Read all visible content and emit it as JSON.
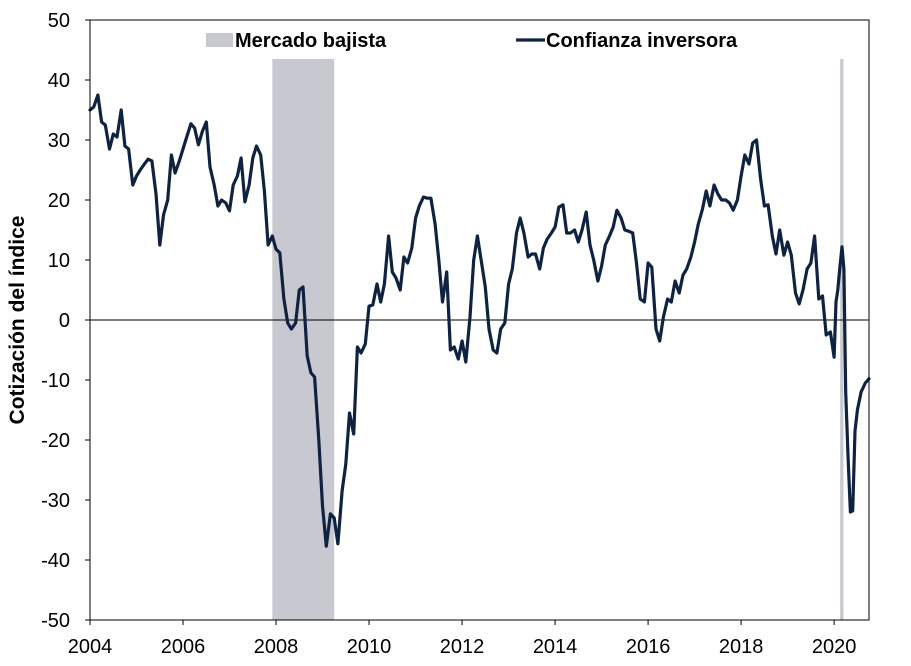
{
  "chart_data": {
    "type": "line",
    "title": "",
    "xlabel": "",
    "ylabel": "Cotización del índice",
    "xlim": [
      2004.0,
      2020.75
    ],
    "ylim": [
      -50,
      50
    ],
    "yticks": [
      50,
      40,
      30,
      20,
      10,
      0,
      -10,
      -20,
      -30,
      -40,
      -50
    ],
    "xticks": [
      2004,
      2006,
      2008,
      2010,
      2012,
      2014,
      2016,
      2018,
      2020
    ],
    "xtick_labels": [
      "2004",
      "2006",
      "2008",
      "2010",
      "2012",
      "2014",
      "2016",
      "2018",
      "2020"
    ],
    "grid": false,
    "zero_line": true,
    "legend_position": "top",
    "legend": [
      {
        "name": "Mercado bajista",
        "kind": "area",
        "color": "#c8c9d0"
      },
      {
        "name": "Confianza inversora",
        "kind": "line",
        "color": "#0f2341"
      }
    ],
    "shaded_periods": [
      {
        "name": "Mercado bajista",
        "start": 2007.92,
        "end": 2009.25
      },
      {
        "name": "Mercado bajista",
        "start": 2020.13,
        "end": 2020.2
      }
    ],
    "series": [
      {
        "name": "Confianza inversora",
        "color": "#0f2341",
        "points": [
          [
            2004.0,
            35
          ],
          [
            2004.08,
            35.5
          ],
          [
            2004.17,
            37.5
          ],
          [
            2004.25,
            33
          ],
          [
            2004.33,
            32.5
          ],
          [
            2004.42,
            28.5
          ],
          [
            2004.5,
            31
          ],
          [
            2004.58,
            30.5
          ],
          [
            2004.67,
            35
          ],
          [
            2004.75,
            29
          ],
          [
            2004.83,
            28.5
          ],
          [
            2004.92,
            22.5
          ],
          [
            2005.0,
            24
          ],
          [
            2005.08,
            25
          ],
          [
            2005.17,
            26
          ],
          [
            2005.25,
            26.8
          ],
          [
            2005.33,
            26.5
          ],
          [
            2005.42,
            21
          ],
          [
            2005.5,
            12.5
          ],
          [
            2005.58,
            17.5
          ],
          [
            2005.67,
            20
          ],
          [
            2005.75,
            27.5
          ],
          [
            2005.83,
            24.5
          ],
          [
            2005.92,
            26.5
          ],
          [
            2006.0,
            28.5
          ],
          [
            2006.08,
            30.5
          ],
          [
            2006.17,
            32.7
          ],
          [
            2006.25,
            32
          ],
          [
            2006.33,
            29.2
          ],
          [
            2006.42,
            31.5
          ],
          [
            2006.5,
            33
          ],
          [
            2006.58,
            25.5
          ],
          [
            2006.67,
            22.5
          ],
          [
            2006.75,
            19
          ],
          [
            2006.83,
            20
          ],
          [
            2006.92,
            19.5
          ],
          [
            2007.0,
            18.2
          ],
          [
            2007.08,
            22.5
          ],
          [
            2007.17,
            24
          ],
          [
            2007.25,
            27
          ],
          [
            2007.33,
            19.7
          ],
          [
            2007.42,
            22.5
          ],
          [
            2007.5,
            27
          ],
          [
            2007.58,
            29
          ],
          [
            2007.67,
            27.5
          ],
          [
            2007.75,
            21.5
          ],
          [
            2007.83,
            12.5
          ],
          [
            2007.92,
            14
          ],
          [
            2008.0,
            11.8
          ],
          [
            2008.08,
            11.2
          ],
          [
            2008.17,
            3.5
          ],
          [
            2008.25,
            -0.5
          ],
          [
            2008.33,
            -1.5
          ],
          [
            2008.42,
            -0.5
          ],
          [
            2008.5,
            5
          ],
          [
            2008.58,
            5.5
          ],
          [
            2008.67,
            -6
          ],
          [
            2008.75,
            -8.8
          ],
          [
            2008.83,
            -9.5
          ],
          [
            2008.92,
            -20
          ],
          [
            2009.0,
            -31
          ],
          [
            2009.08,
            -37.7
          ],
          [
            2009.17,
            -32.3
          ],
          [
            2009.25,
            -33
          ],
          [
            2009.33,
            -37.3
          ],
          [
            2009.42,
            -28.5
          ],
          [
            2009.5,
            -24
          ],
          [
            2009.58,
            -15.5
          ],
          [
            2009.67,
            -19
          ],
          [
            2009.75,
            -4.5
          ],
          [
            2009.83,
            -5.5
          ],
          [
            2009.92,
            -4
          ],
          [
            2010.0,
            2.3
          ],
          [
            2010.08,
            2.5
          ],
          [
            2010.17,
            6
          ],
          [
            2010.25,
            3
          ],
          [
            2010.33,
            6
          ],
          [
            2010.42,
            14
          ],
          [
            2010.5,
            8
          ],
          [
            2010.58,
            7
          ],
          [
            2010.67,
            5
          ],
          [
            2010.75,
            10.5
          ],
          [
            2010.83,
            9.5
          ],
          [
            2010.92,
            12
          ],
          [
            2011.0,
            17
          ],
          [
            2011.08,
            19
          ],
          [
            2011.17,
            20.5
          ],
          [
            2011.25,
            20.3
          ],
          [
            2011.33,
            20.3
          ],
          [
            2011.42,
            16
          ],
          [
            2011.5,
            10
          ],
          [
            2011.58,
            3
          ],
          [
            2011.67,
            8
          ],
          [
            2011.75,
            -5
          ],
          [
            2011.83,
            -4.5
          ],
          [
            2011.92,
            -6.5
          ],
          [
            2012.0,
            -3.5
          ],
          [
            2012.08,
            -7
          ],
          [
            2012.17,
            0.5
          ],
          [
            2012.25,
            10
          ],
          [
            2012.33,
            14
          ],
          [
            2012.42,
            9.5
          ],
          [
            2012.5,
            5.5
          ],
          [
            2012.58,
            -1.5
          ],
          [
            2012.67,
            -5
          ],
          [
            2012.75,
            -5.5
          ],
          [
            2012.83,
            -1.5
          ],
          [
            2012.92,
            -0.5
          ],
          [
            2013.0,
            6
          ],
          [
            2013.08,
            8.5
          ],
          [
            2013.17,
            14.5
          ],
          [
            2013.25,
            17
          ],
          [
            2013.33,
            14.5
          ],
          [
            2013.42,
            10.5
          ],
          [
            2013.5,
            11
          ],
          [
            2013.58,
            11
          ],
          [
            2013.67,
            8.5
          ],
          [
            2013.75,
            12
          ],
          [
            2013.83,
            13.5
          ],
          [
            2013.92,
            14.5
          ],
          [
            2014.0,
            15.5
          ],
          [
            2014.08,
            18.8
          ],
          [
            2014.17,
            19.2
          ],
          [
            2014.25,
            14.5
          ],
          [
            2014.33,
            14.5
          ],
          [
            2014.42,
            15
          ],
          [
            2014.5,
            13
          ],
          [
            2014.58,
            15
          ],
          [
            2014.67,
            18
          ],
          [
            2014.75,
            12.5
          ],
          [
            2014.83,
            10
          ],
          [
            2014.92,
            6.5
          ],
          [
            2015.0,
            9
          ],
          [
            2015.08,
            12.5
          ],
          [
            2015.17,
            14
          ],
          [
            2015.25,
            15.5
          ],
          [
            2015.33,
            18.3
          ],
          [
            2015.42,
            17
          ],
          [
            2015.5,
            15
          ],
          [
            2015.58,
            14.8
          ],
          [
            2015.67,
            14.5
          ],
          [
            2015.75,
            9.5
          ],
          [
            2015.83,
            3.5
          ],
          [
            2015.92,
            3
          ],
          [
            2016.0,
            9.5
          ],
          [
            2016.08,
            8.8
          ],
          [
            2016.17,
            -1.5
          ],
          [
            2016.25,
            -3.5
          ],
          [
            2016.33,
            0.5
          ],
          [
            2016.42,
            3.5
          ],
          [
            2016.5,
            3
          ],
          [
            2016.58,
            6.5
          ],
          [
            2016.67,
            4.5
          ],
          [
            2016.75,
            7.5
          ],
          [
            2016.83,
            8.5
          ],
          [
            2016.92,
            10.5
          ],
          [
            2017.0,
            13
          ],
          [
            2017.08,
            16
          ],
          [
            2017.17,
            18.5
          ],
          [
            2017.25,
            21.5
          ],
          [
            2017.33,
            19
          ],
          [
            2017.42,
            22.5
          ],
          [
            2017.5,
            21
          ],
          [
            2017.58,
            20
          ],
          [
            2017.67,
            20
          ],
          [
            2017.75,
            19.5
          ],
          [
            2017.83,
            18.3
          ],
          [
            2017.92,
            20
          ],
          [
            2018.0,
            24
          ],
          [
            2018.08,
            27.5
          ],
          [
            2018.17,
            26
          ],
          [
            2018.25,
            29.5
          ],
          [
            2018.33,
            30
          ],
          [
            2018.42,
            23.5
          ],
          [
            2018.5,
            19
          ],
          [
            2018.58,
            19.2
          ],
          [
            2018.67,
            14
          ],
          [
            2018.75,
            11
          ],
          [
            2018.83,
            15
          ],
          [
            2018.92,
            10.8
          ],
          [
            2019.0,
            13
          ],
          [
            2019.08,
            10.8
          ],
          [
            2019.17,
            4.5
          ],
          [
            2019.25,
            2.7
          ],
          [
            2019.33,
            5
          ],
          [
            2019.42,
            8.5
          ],
          [
            2019.5,
            9.5
          ],
          [
            2019.58,
            14
          ],
          [
            2019.67,
            3.5
          ],
          [
            2019.75,
            4
          ],
          [
            2019.83,
            -2.5
          ],
          [
            2019.92,
            -2
          ],
          [
            2020.0,
            -6.2
          ],
          [
            2020.04,
            3
          ],
          [
            2020.08,
            5
          ],
          [
            2020.12,
            8.5
          ],
          [
            2020.17,
            12.2
          ],
          [
            2020.21,
            8.5
          ],
          [
            2020.25,
            -12
          ],
          [
            2020.3,
            -23
          ],
          [
            2020.35,
            -32
          ],
          [
            2020.4,
            -31.8
          ],
          [
            2020.45,
            -18.5
          ],
          [
            2020.5,
            -15
          ],
          [
            2020.58,
            -12
          ],
          [
            2020.67,
            -10.5
          ],
          [
            2020.75,
            -9.8
          ]
        ]
      }
    ]
  }
}
